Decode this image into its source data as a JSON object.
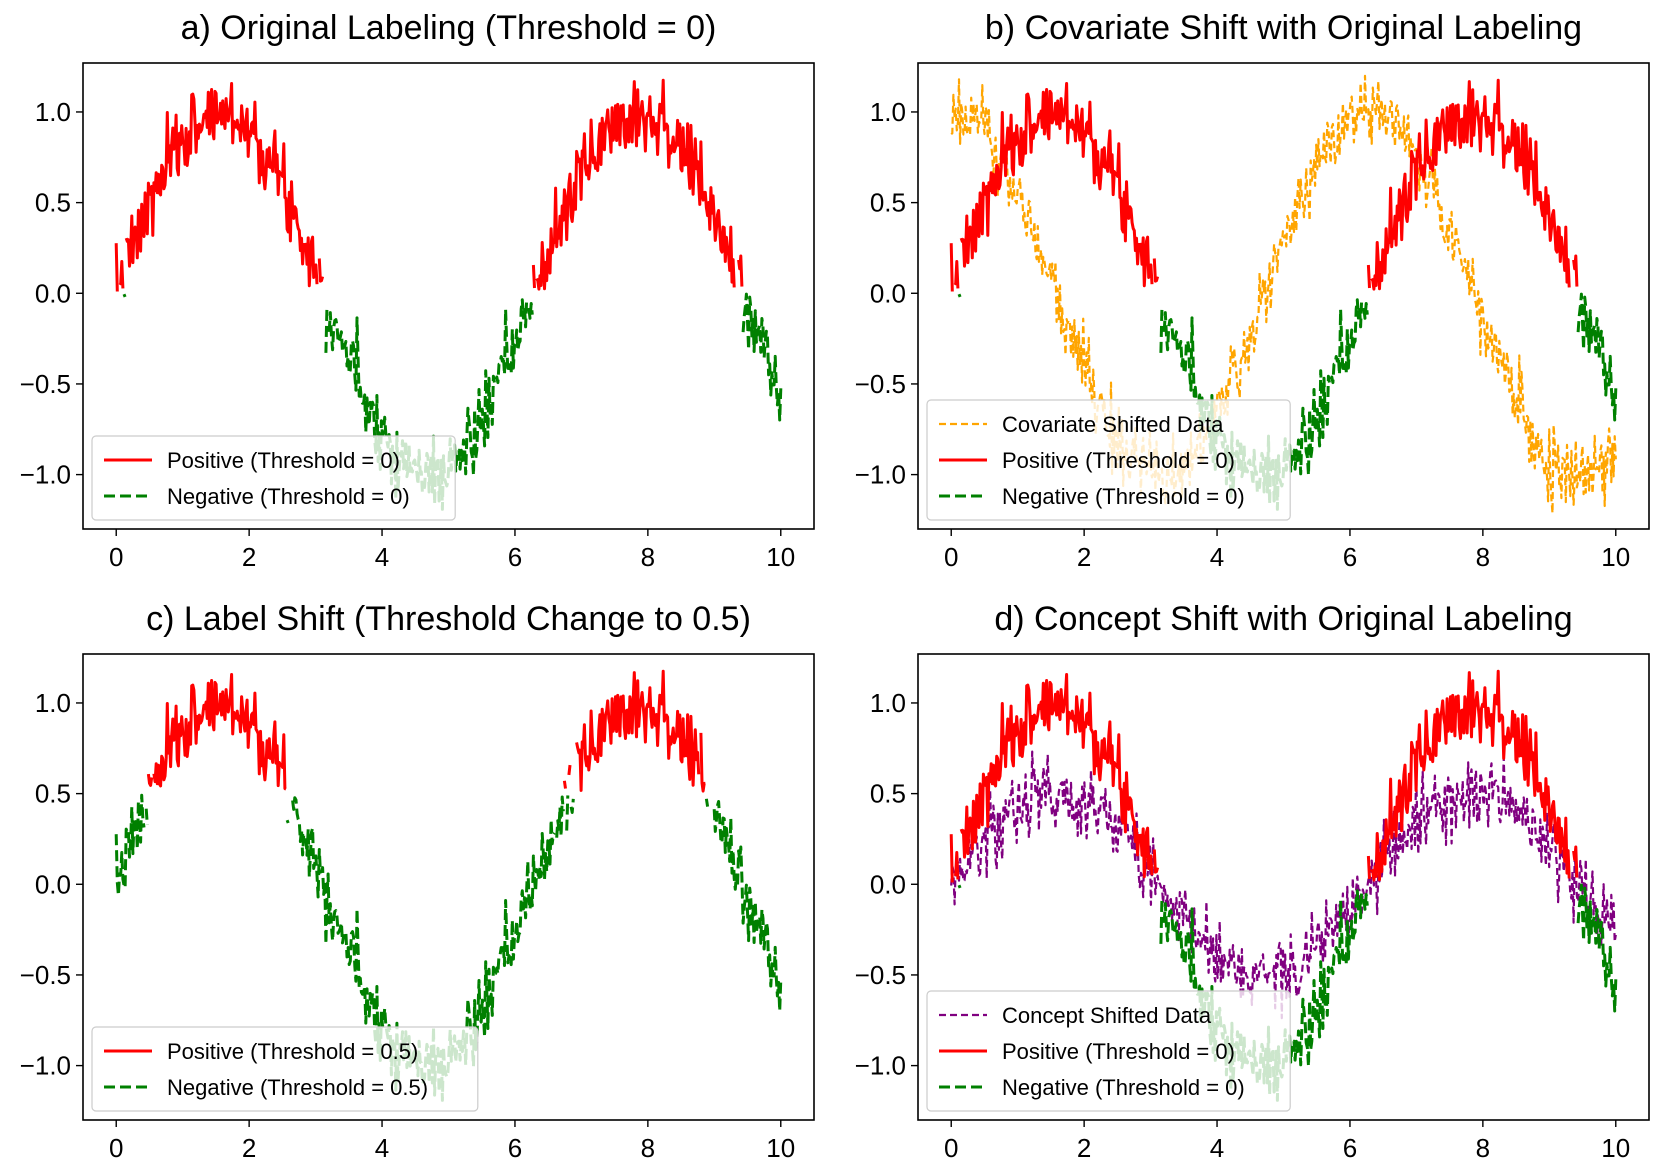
{
  "chart_data": [
    {
      "type": "line",
      "panel": "a",
      "title": "a) Original Labeling (Threshold = 0)",
      "xlabel": "",
      "ylabel": "",
      "xlim": [
        -0.5,
        10.5
      ],
      "ylim": [
        -1.3,
        1.27
      ],
      "xticks": [
        0,
        2,
        4,
        6,
        8,
        10
      ],
      "xtick_labels": [
        "0",
        "2",
        "4",
        "6",
        "8",
        "10"
      ],
      "yticks": [
        -1.0,
        -0.5,
        0.0,
        0.5,
        1.0
      ],
      "ytick_labels": [
        "−1.0",
        "−0.5",
        "0.0",
        "0.5",
        "1.0"
      ],
      "threshold": 0,
      "base": {
        "func": "sin",
        "amp": 1,
        "noise": 0.1,
        "seed": 7
      },
      "series": [
        {
          "name": "Positive (Threshold = 0)",
          "role": "positive",
          "color": "#ff0000",
          "style": "solid"
        },
        {
          "name": "Negative (Threshold = 0)",
          "role": "negative",
          "color": "#008000",
          "style": "dashed"
        }
      ],
      "legend": {
        "position": "lower-left",
        "entries": [
          "Positive (Threshold = 0)",
          "Negative (Threshold = 0)"
        ]
      }
    },
    {
      "type": "line",
      "panel": "b",
      "title": "b) Covariate Shift with Original Labeling",
      "xlabel": "",
      "ylabel": "",
      "xlim": [
        -0.5,
        10.5
      ],
      "ylim": [
        -1.3,
        1.27
      ],
      "xticks": [
        0,
        2,
        4,
        6,
        8,
        10
      ],
      "xtick_labels": [
        "0",
        "2",
        "4",
        "6",
        "8",
        "10"
      ],
      "yticks": [
        -1.0,
        -0.5,
        0.0,
        0.5,
        1.0
      ],
      "ytick_labels": [
        "−1.0",
        "−0.5",
        "0.0",
        "0.5",
        "1.0"
      ],
      "threshold": 0,
      "base": {
        "func": "sin",
        "amp": 1,
        "noise": 0.1,
        "seed": 7
      },
      "series": [
        {
          "name": "Covariate Shifted Data",
          "role": "shifted",
          "func": "sin",
          "amp": 1,
          "phase": 1.5708,
          "noise": 0.1,
          "seed": 21,
          "color": "#ffa500",
          "style": "thin-dashed"
        },
        {
          "name": "Positive (Threshold = 0)",
          "role": "positive",
          "color": "#ff0000",
          "style": "solid"
        },
        {
          "name": "Negative (Threshold = 0)",
          "role": "negative",
          "color": "#008000",
          "style": "dashed"
        }
      ],
      "legend": {
        "position": "lower-left",
        "entries": [
          "Covariate Shifted Data",
          "Positive (Threshold = 0)",
          "Negative (Threshold = 0)"
        ]
      }
    },
    {
      "type": "line",
      "panel": "c",
      "title": "c) Label Shift (Threshold Change to 0.5)",
      "xlabel": "",
      "ylabel": "",
      "xlim": [
        -0.5,
        10.5
      ],
      "ylim": [
        -1.3,
        1.27
      ],
      "xticks": [
        0,
        2,
        4,
        6,
        8,
        10
      ],
      "xtick_labels": [
        "0",
        "2",
        "4",
        "6",
        "8",
        "10"
      ],
      "yticks": [
        -1.0,
        -0.5,
        0.0,
        0.5,
        1.0
      ],
      "ytick_labels": [
        "−1.0",
        "−0.5",
        "0.0",
        "0.5",
        "1.0"
      ],
      "threshold": 0.5,
      "base": {
        "func": "sin",
        "amp": 1,
        "noise": 0.1,
        "seed": 7
      },
      "series": [
        {
          "name": "Positive (Threshold = 0.5)",
          "role": "positive",
          "color": "#ff0000",
          "style": "solid"
        },
        {
          "name": "Negative (Threshold = 0.5)",
          "role": "negative",
          "color": "#008000",
          "style": "dashed"
        }
      ],
      "legend": {
        "position": "lower-left",
        "entries": [
          "Positive (Threshold = 0.5)",
          "Negative (Threshold = 0.5)"
        ]
      }
    },
    {
      "type": "line",
      "panel": "d",
      "title": "d) Concept Shift with Original Labeling",
      "xlabel": "",
      "ylabel": "",
      "xlim": [
        -0.5,
        10.5
      ],
      "ylim": [
        -1.3,
        1.27
      ],
      "xticks": [
        0,
        2,
        4,
        6,
        8,
        10
      ],
      "xtick_labels": [
        "0",
        "2",
        "4",
        "6",
        "8",
        "10"
      ],
      "yticks": [
        -1.0,
        -0.5,
        0.0,
        0.5,
        1.0
      ],
      "ytick_labels": [
        "−1.0",
        "−0.5",
        "0.0",
        "0.5",
        "1.0"
      ],
      "threshold": 0,
      "base": {
        "func": "sin",
        "amp": 1,
        "noise": 0.1,
        "seed": 7
      },
      "series": [
        {
          "name": "Concept Shifted Data",
          "role": "shifted",
          "func": "sin",
          "amp": 0.5,
          "phase": 0,
          "noise": 0.1,
          "seed": 33,
          "color": "#800080",
          "style": "thin-dashed"
        },
        {
          "name": "Positive (Threshold = 0)",
          "role": "positive",
          "color": "#ff0000",
          "style": "solid"
        },
        {
          "name": "Negative (Threshold = 0)",
          "role": "negative",
          "color": "#008000",
          "style": "dashed"
        }
      ],
      "legend": {
        "position": "lower-left",
        "entries": [
          "Concept Shifted Data",
          "Positive (Threshold = 0)",
          "Negative (Threshold = 0)"
        ]
      }
    }
  ]
}
